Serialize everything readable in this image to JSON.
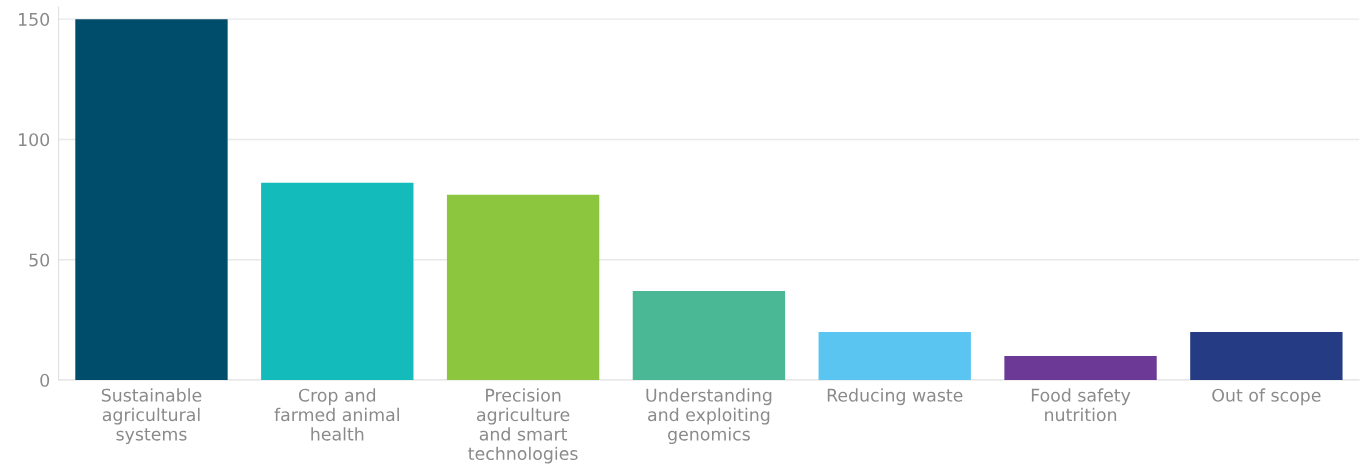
{
  "chart_data": {
    "type": "bar",
    "categories": [
      "Sustainable\nagricultural\nsystems",
      "Crop and\nfarmed animal\nhealth",
      "Precision\nagriculture\nand smart\ntechnologies",
      "Understanding\nand exploiting\ngenomics",
      "Reducing waste",
      "Food safety\nnutrition",
      "Out of scope"
    ],
    "values": [
      150,
      82,
      77,
      37,
      20,
      10,
      20
    ],
    "colors": [
      "#004c6b",
      "#14bbbb",
      "#8cc63f",
      "#4bb895",
      "#5bc5f2",
      "#6d3996",
      "#253c84"
    ],
    "ylim": [
      0,
      155
    ],
    "yticks": [
      0,
      50,
      100,
      150
    ],
    "grid": "y"
  }
}
